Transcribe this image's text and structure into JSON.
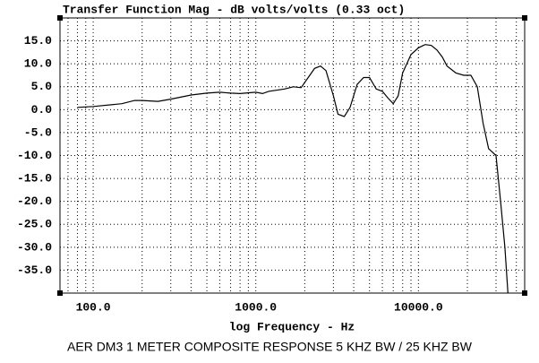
{
  "chart_data": {
    "type": "line",
    "title": "Transfer Function Mag - dB volts/volts (0.33 oct)",
    "x_label": "log Frequency - Hz",
    "footer": "AER DM3  1 METER  COMPOSITE RESPONSE 5 KHZ BW / 25 KHZ BW",
    "log_x": true,
    "grid": true,
    "color": "#000000",
    "x": [
      80,
      100,
      150,
      180,
      200,
      250,
      300,
      400,
      500,
      600,
      700,
      800,
      1000,
      1100,
      1200,
      1500,
      1700,
      1900,
      2100,
      2300,
      2500,
      2700,
      3000,
      3200,
      3500,
      3800,
      4200,
      4600,
      5000,
      5500,
      6000,
      6500,
      7000,
      7500,
      8000,
      9000,
      10000,
      11000,
      12000,
      13000,
      14000,
      15000,
      17000,
      19000,
      21000,
      23000,
      25000,
      27000,
      30000,
      32000,
      34000,
      35500
    ],
    "values": [
      0.5,
      0.7,
      1.3,
      2.0,
      2.0,
      1.8,
      2.3,
      3.2,
      3.6,
      3.8,
      3.6,
      3.5,
      3.8,
      3.5,
      4.0,
      4.5,
      5.0,
      4.8,
      7.0,
      9.0,
      9.5,
      8.5,
      3.0,
      -1.0,
      -1.5,
      0.5,
      5.5,
      7.0,
      7.0,
      4.5,
      4.0,
      2.5,
      1.3,
      3.0,
      8.0,
      12.0,
      13.5,
      14.2,
      14.0,
      13.0,
      11.5,
      9.5,
      8.0,
      7.5,
      7.5,
      5.0,
      -3.0,
      -8.5,
      -10.0,
      -20.0,
      -30.0,
      -40.0
    ],
    "xlim": [
      62.5,
      45000
    ],
    "xticks": [
      {
        "value": 100,
        "label": "100.0"
      },
      {
        "value": 1000,
        "label": "1000.0"
      },
      {
        "value": 10000,
        "label": "10000.0"
      }
    ],
    "x_minor_ticks": [
      70,
      80,
      90,
      200,
      300,
      400,
      500,
      600,
      700,
      800,
      900,
      2000,
      3000,
      4000,
      5000,
      6000,
      7000,
      8000,
      9000,
      20000,
      30000,
      40000
    ],
    "ylim": [
      -40,
      20
    ],
    "yticks": [
      {
        "value": 15,
        "label": "15.0"
      },
      {
        "value": 10,
        "label": "10.0"
      },
      {
        "value": 5,
        "label": "5.0"
      },
      {
        "value": 0,
        "label": "0.0"
      },
      {
        "value": -5,
        "label": "-5.0"
      },
      {
        "value": -10,
        "label": "-10.0"
      },
      {
        "value": -15,
        "label": "-15.0"
      },
      {
        "value": -20,
        "label": "-20.0"
      },
      {
        "value": -25,
        "label": "-25.0"
      },
      {
        "value": -30,
        "label": "-30.0"
      },
      {
        "value": -35,
        "label": "-35.0"
      }
    ]
  }
}
